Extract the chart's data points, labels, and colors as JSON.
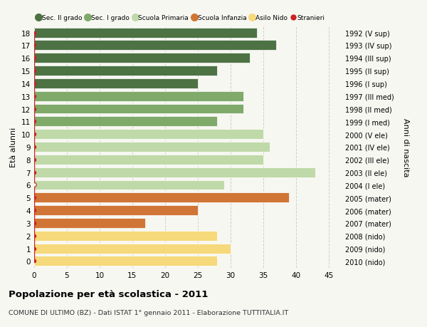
{
  "ages": [
    18,
    17,
    16,
    15,
    14,
    13,
    12,
    11,
    10,
    9,
    8,
    7,
    6,
    5,
    4,
    3,
    2,
    1,
    0
  ],
  "right_labels": [
    "1992 (V sup)",
    "1993 (IV sup)",
    "1994 (III sup)",
    "1995 (II sup)",
    "1996 (I sup)",
    "1997 (III med)",
    "1998 (II med)",
    "1999 (I med)",
    "2000 (V ele)",
    "2001 (IV ele)",
    "2002 (III ele)",
    "2003 (II ele)",
    "2004 (I ele)",
    "2005 (mater)",
    "2006 (mater)",
    "2007 (mater)",
    "2008 (nido)",
    "2009 (nido)",
    "2010 (nido)"
  ],
  "bar_values": [
    34,
    37,
    33,
    28,
    25,
    32,
    32,
    28,
    35,
    36,
    35,
    43,
    29,
    39,
    25,
    17,
    28,
    30,
    28
  ],
  "bar_colors": [
    "#4d7244",
    "#4d7244",
    "#4d7244",
    "#4d7244",
    "#4d7244",
    "#7faa6a",
    "#7faa6a",
    "#7faa6a",
    "#c0d9a8",
    "#c0d9a8",
    "#c0d9a8",
    "#c0d9a8",
    "#c0d9a8",
    "#d07535",
    "#d07535",
    "#d07535",
    "#f5d97a",
    "#f5d97a",
    "#f5d97a"
  ],
  "stranieri_values": [
    1,
    1,
    1,
    1,
    1,
    1,
    1,
    1,
    1,
    1,
    1,
    1,
    0,
    1,
    1,
    1,
    1,
    1,
    1
  ],
  "legend_labels": [
    "Sec. II grado",
    "Sec. I grado",
    "Scuola Primaria",
    "Scuola Infanzia",
    "Asilo Nido",
    "Stranieri"
  ],
  "legend_colors": [
    "#4d7244",
    "#7faa6a",
    "#c0d9a8",
    "#d07535",
    "#f5d97a",
    "#cc2222"
  ],
  "ylabel": "Età alunni",
  "right_ylabel": "Anni di nascita",
  "xlim": [
    0,
    47
  ],
  "xticks": [
    0,
    5,
    10,
    15,
    20,
    25,
    30,
    35,
    40,
    45
  ],
  "title": "Popolazione per età scolastica - 2011",
  "subtitle": "COMUNE DI ULTIMO (BZ) - Dati ISTAT 1° gennaio 2011 - Elaborazione TUTTITALIA.IT",
  "bg_color": "#f7f7f2",
  "grid_color": "#d0d0c8",
  "bar_height": 0.78,
  "stranieri_color": "#cc2222"
}
